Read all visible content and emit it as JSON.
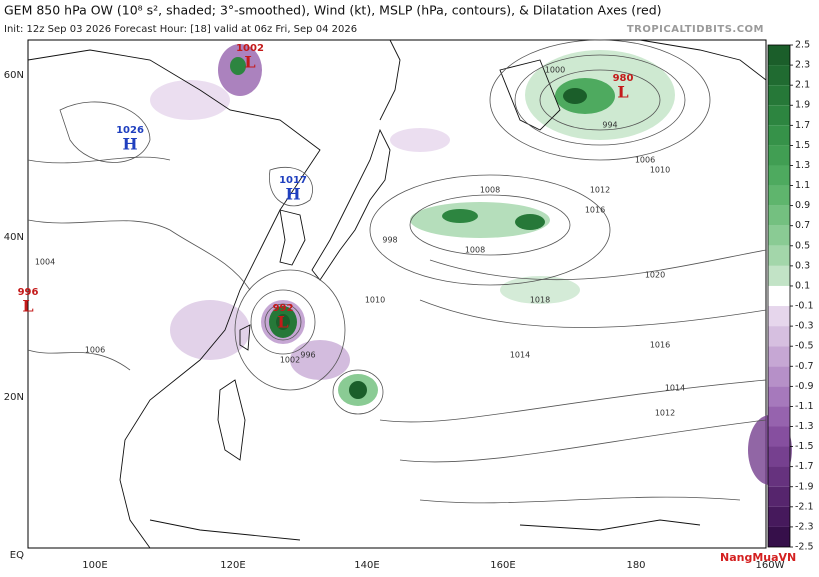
{
  "header": {
    "title": "GEM 850 hPa OW (10⁸ s², shaded; 3°-smoothed), Wind (kt), MSLP (hPa, contours), & Dilatation Axes (red)",
    "subtitle": "Init: 12z Sep 03 2026   Forecast Hour: [18]   valid at 06z Fri, Sep 04 2026",
    "site": "TROPICALTIDBITS.COM"
  },
  "latitude_labels": [
    "60N",
    "40N",
    "20N",
    "EQ"
  ],
  "longitude_labels": [
    "100E",
    "120E",
    "140E",
    "160E",
    "180",
    "160W"
  ],
  "pressure_centers": [
    {
      "value": "1026",
      "kind": "H"
    },
    {
      "value": "1017",
      "kind": "H"
    },
    {
      "value": "996",
      "kind": "L"
    },
    {
      "value": "992",
      "kind": "L"
    },
    {
      "value": "980",
      "kind": "L"
    },
    {
      "value": "1002",
      "kind": "L"
    }
  ],
  "contour_labels": [
    "1008",
    "1010",
    "1012",
    "1014",
    "1016",
    "1018",
    "1020",
    "1004",
    "1006",
    "1000",
    "994",
    "996",
    "998",
    "1002",
    "1010",
    "1012",
    "1014",
    "1016",
    "1008",
    "1006"
  ],
  "colorbar": {
    "ticks": [
      2.5,
      2.3,
      2.1,
      1.9,
      1.7,
      1.5,
      1.3,
      1.1,
      0.9,
      0.7,
      0.5,
      0.3,
      0.1,
      -0.1,
      -0.3,
      -0.5,
      -0.7,
      -0.9,
      -1.1,
      -1.3,
      -1.5,
      -1.7,
      -1.9,
      -2.1,
      -2.3,
      -2.5
    ],
    "colors": [
      "#1b5e2a",
      "#206b31",
      "#267838",
      "#2d8540",
      "#369249",
      "#419e53",
      "#4eaa5f",
      "#5fb56d",
      "#74c080",
      "#8acb94",
      "#a3d6aa",
      "#c2e3c6",
      "#ffffff",
      "#e6d6ec",
      "#d6bfe0",
      "#c6a7d4",
      "#b690c8",
      "#a679bc",
      "#9663ae",
      "#864f9f",
      "#76408f",
      "#66327e",
      "#56256d",
      "#46195c",
      "#360f4a"
    ]
  },
  "watermark": "NangMuaVN"
}
